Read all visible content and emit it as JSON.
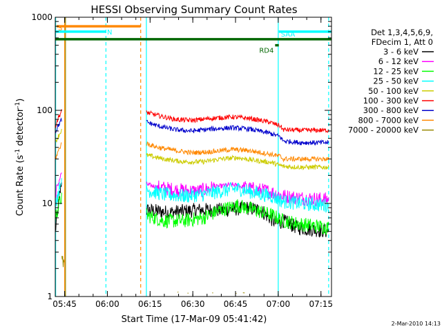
{
  "chart_data": {
    "type": "line",
    "title": "HESSI Observing Summary Count Rates",
    "xlabel": "Start Time (17-Mar-09 05:41:42)",
    "ylabel_main": "Count Rate (s",
    "ylabel_sup1": "-1",
    "ylabel_mid": " detector",
    "ylabel_sup2": "-1",
    "ylabel_end": ")",
    "x_unit": "minutes since 05:41:42",
    "xlim": [
      0,
      97
    ],
    "ylim": [
      1,
      1000
    ],
    "yscale": "log",
    "x_ticks": [
      {
        "label": "05:45",
        "value": 3.3
      },
      {
        "label": "06:00",
        "value": 18.3
      },
      {
        "label": "06:15",
        "value": 33.3
      },
      {
        "label": "06:30",
        "value": 48.3
      },
      {
        "label": "06:45",
        "value": 63.3
      },
      {
        "label": "07:00",
        "value": 78.3
      },
      {
        "label": "07:15",
        "value": 93.3
      }
    ],
    "y_ticks": [
      {
        "label": "1",
        "value": 1
      },
      {
        "label": "10",
        "value": 10
      },
      {
        "label": "100",
        "value": 100
      },
      {
        "label": "1000",
        "value": 1000
      }
    ],
    "legend_header": [
      "Det 1,3,4,5,6,9,",
      "FDecim 1, Att 0"
    ],
    "legend_position": "right",
    "series": [
      {
        "name": "3 - 6 keV",
        "color": "#000000",
        "a": [
          [
            0,
            5
          ],
          [
            0.6,
            7
          ],
          [
            1.2,
            10
          ],
          [
            1.8,
            14
          ],
          [
            2.3,
            17
          ]
        ],
        "b": [
          [
            32,
            8.5
          ],
          [
            40,
            8
          ],
          [
            50,
            8.5
          ],
          [
            60,
            8.5
          ],
          [
            67,
            9
          ],
          [
            72,
            8.5
          ],
          [
            78,
            6
          ],
          [
            80,
            6.5
          ],
          [
            85,
            5.5
          ],
          [
            96,
            5
          ]
        ]
      },
      {
        "name": "6 - 12 keV",
        "color": "#ff00ff",
        "a": [
          [
            0,
            12
          ],
          [
            1,
            16
          ],
          [
            2.3,
            22
          ]
        ],
        "b": [
          [
            32,
            16
          ],
          [
            36,
            15
          ],
          [
            42,
            14
          ],
          [
            50,
            13.5
          ],
          [
            56,
            15
          ],
          [
            62,
            16
          ],
          [
            68,
            14.5
          ],
          [
            75,
            13.5
          ],
          [
            80,
            12
          ],
          [
            85,
            11.5
          ],
          [
            96,
            11
          ]
        ]
      },
      {
        "name": "12 - 25 keV",
        "color": "#00ff00",
        "a": [
          [
            0,
            7
          ],
          [
            1,
            9
          ],
          [
            2.3,
            12
          ]
        ],
        "b": [
          [
            32,
            7.5
          ],
          [
            38,
            6.5
          ],
          [
            45,
            6.5
          ],
          [
            52,
            7
          ],
          [
            58,
            8.5
          ],
          [
            64,
            9.5
          ],
          [
            70,
            8.5
          ],
          [
            76,
            7.5
          ],
          [
            80,
            6.5
          ],
          [
            86,
            6
          ],
          [
            96,
            5.5
          ]
        ]
      },
      {
        "name": "25 - 50 keV",
        "color": "#00ffff",
        "a": [
          [
            0,
            10
          ],
          [
            1,
            13
          ],
          [
            2.3,
            18
          ]
        ],
        "b": [
          [
            32,
            14
          ],
          [
            38,
            12.5
          ],
          [
            45,
            12
          ],
          [
            52,
            12.5
          ],
          [
            58,
            13.5
          ],
          [
            64,
            14.5
          ],
          [
            70,
            13
          ],
          [
            76,
            12
          ],
          [
            80,
            10.5
          ],
          [
            86,
            10
          ],
          [
            96,
            9.5
          ]
        ]
      },
      {
        "name": "50 - 100 keV",
        "color": "#cccc00",
        "a": [
          [
            0,
            45
          ],
          [
            1,
            52
          ],
          [
            2.3,
            62
          ]
        ],
        "b": [
          [
            32,
            33
          ],
          [
            38,
            30
          ],
          [
            45,
            28
          ],
          [
            52,
            28
          ],
          [
            58,
            30
          ],
          [
            64,
            31
          ],
          [
            70,
            29
          ],
          [
            76,
            27.5
          ],
          [
            80,
            25
          ],
          [
            86,
            24.5
          ],
          [
            96,
            24.5
          ]
        ]
      },
      {
        "name": "100 - 300 keV",
        "color": "#ff0000",
        "a": [
          [
            0,
            68
          ],
          [
            1,
            82
          ],
          [
            2.3,
            100
          ]
        ],
        "b": [
          [
            32,
            95
          ],
          [
            36,
            88
          ],
          [
            42,
            80
          ],
          [
            48,
            78
          ],
          [
            55,
            82
          ],
          [
            62,
            85
          ],
          [
            68,
            82
          ],
          [
            75,
            75
          ],
          [
            79,
            68
          ],
          [
            80,
            62
          ],
          [
            86,
            61
          ],
          [
            96,
            61
          ]
        ]
      },
      {
        "name": "300 - 800 keV",
        "color": "#0000cc",
        "a": [
          [
            0,
            58
          ],
          [
            1,
            68
          ],
          [
            2.3,
            80
          ]
        ],
        "b": [
          [
            32,
            75
          ],
          [
            36,
            68
          ],
          [
            42,
            62
          ],
          [
            48,
            60
          ],
          [
            55,
            63
          ],
          [
            62,
            65
          ],
          [
            68,
            63
          ],
          [
            75,
            57
          ],
          [
            79,
            52
          ],
          [
            80,
            47
          ],
          [
            86,
            45
          ],
          [
            96,
            45
          ]
        ]
      },
      {
        "name": "800 - 7000 keV",
        "color": "#ff8800",
        "a": [
          [
            0,
            30
          ],
          [
            1,
            36
          ],
          [
            2.3,
            45
          ]
        ],
        "b": [
          [
            32,
            44
          ],
          [
            36,
            40
          ],
          [
            42,
            37
          ],
          [
            48,
            35
          ],
          [
            55,
            36
          ],
          [
            62,
            38
          ],
          [
            68,
            37
          ],
          [
            75,
            34
          ],
          [
            79,
            32
          ],
          [
            80,
            30
          ],
          [
            86,
            30
          ],
          [
            96,
            30
          ]
        ]
      },
      {
        "name": "7000 - 20000 keV",
        "color": "#998800",
        "a": [
          [
            2.3,
            2.5
          ],
          [
            3.2,
            2
          ]
        ],
        "b": [
          [
            60,
            1.08
          ]
        ]
      }
    ],
    "flags": [
      {
        "label": "S",
        "color": "#ff8800",
        "x0": 0.5,
        "x1": 30,
        "y": 800
      },
      {
        "label": "N",
        "color": "#00ffff",
        "x0": 0,
        "x1": 17.8,
        "y": 700
      },
      {
        "label": "",
        "color": "#006600",
        "x0": 0,
        "x1": 97,
        "y": 580
      },
      {
        "label": "RD4",
        "color": "#006600",
        "x0": 77.2,
        "x1": 78.5,
        "y": 500
      },
      {
        "label": "SAA",
        "color": "#00ffff",
        "x0": 78.5,
        "x1": 97,
        "y": 700
      }
    ],
    "vertical_lines": [
      {
        "x": 0.15,
        "color": "#00ffff",
        "dash": false
      },
      {
        "x": 3.3,
        "color": "#ff8800",
        "dash": false
      },
      {
        "x": 3.6,
        "color": "#998800",
        "dash": false
      },
      {
        "x": 17.8,
        "color": "#00ffff",
        "dash": true
      },
      {
        "x": 30,
        "color": "#ff8800",
        "dash": true
      },
      {
        "x": 32,
        "color": "#00ffff",
        "dash": false
      },
      {
        "x": 78.3,
        "color": "#00ffff",
        "dash": false
      },
      {
        "x": 96,
        "color": "#00ffff",
        "dash": true
      }
    ],
    "timestamp": "2-Mar-2010 14:13"
  }
}
